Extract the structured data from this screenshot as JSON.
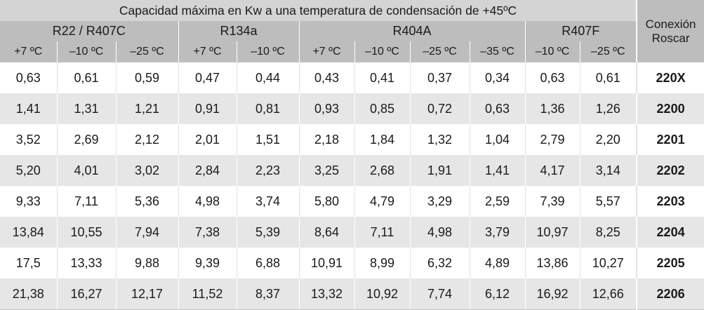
{
  "table": {
    "title": "Capacidad máxima en Kw a una temperatura de condensación de +45ºC",
    "connection_header": [
      "Conexión",
      "Roscar"
    ],
    "groups": [
      {
        "name": "R22 / R407C",
        "columns": [
          "+7 ºC",
          "–10 ºC",
          "–25 ºC"
        ]
      },
      {
        "name": "R134a",
        "columns": [
          "+7 ºC",
          "–10 ºC"
        ]
      },
      {
        "name": "R404A",
        "columns": [
          "+7 ºC",
          "–10 ºC",
          "–25 ºC",
          "–35 ºC"
        ]
      },
      {
        "name": "R407F",
        "columns": [
          "–10 ºC",
          "–25 ºC"
        ]
      }
    ],
    "rows": [
      {
        "values": [
          "0,63",
          "0,61",
          "0,59",
          "0,47",
          "0,44",
          "0,43",
          "0,41",
          "0,37",
          "0,34",
          "0,63",
          "0,61"
        ],
        "connection": "220X"
      },
      {
        "values": [
          "1,41",
          "1,31",
          "1,21",
          "0,91",
          "0,81",
          "0,93",
          "0,85",
          "0,72",
          "0,63",
          "1,36",
          "1,26"
        ],
        "connection": "2200"
      },
      {
        "values": [
          "3,52",
          "2,69",
          "2,12",
          "2,01",
          "1,51",
          "2,18",
          "1,84",
          "1,32",
          "1,04",
          "2,79",
          "2,20"
        ],
        "connection": "2201"
      },
      {
        "values": [
          "5,20",
          "4,01",
          "3,02",
          "2,84",
          "2,23",
          "3,25",
          "2,68",
          "1,91",
          "1,41",
          "4,17",
          "3,14"
        ],
        "connection": "2202"
      },
      {
        "values": [
          "9,33",
          "7,11",
          "5,36",
          "4,98",
          "3,74",
          "5,80",
          "4,79",
          "3,29",
          "2,59",
          "7,39",
          "5,57"
        ],
        "connection": "2203"
      },
      {
        "values": [
          "13,84",
          "10,55",
          "7,94",
          "7,38",
          "5,39",
          "8,64",
          "7,11",
          "4,98",
          "3,79",
          "10,97",
          "8,25"
        ],
        "connection": "2204"
      },
      {
        "values": [
          "17,5",
          "13,33",
          "9,88",
          "9,39",
          "6,88",
          "10,91",
          "8,99",
          "6,32",
          "4,89",
          "13,86",
          "10,27"
        ],
        "connection": "2205"
      },
      {
        "values": [
          "21,38",
          "16,27",
          "12,17",
          "11,52",
          "8,37",
          "13,32",
          "10,92",
          "7,74",
          "6,12",
          "16,92",
          "12,66"
        ],
        "connection": "2206"
      }
    ]
  }
}
